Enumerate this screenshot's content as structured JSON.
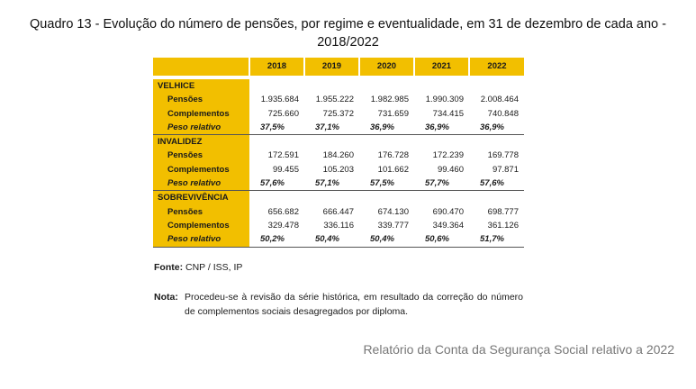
{
  "title": "Quadro 13 - Evolução do número de pensões, por regime e eventualidade, em 31 de dezembro de cada ano - 2018/2022",
  "table": {
    "years": [
      "2018",
      "2019",
      "2020",
      "2021",
      "2022"
    ],
    "sections": [
      {
        "label": "VELHICE",
        "rows": [
          {
            "label": "Pensões",
            "values": [
              "1.935.684",
              "1.955.222",
              "1.982.985",
              "1.990.309",
              "2.008.464"
            ]
          },
          {
            "label": "Complementos",
            "values": [
              "725.660",
              "725.372",
              "731.659",
              "734.415",
              "740.848"
            ]
          },
          {
            "label": "Peso relativo",
            "values": [
              "37,5%",
              "37,1%",
              "36,9%",
              "36,9%",
              "36,9%"
            ]
          }
        ]
      },
      {
        "label": "INVALIDEZ",
        "rows": [
          {
            "label": "Pensões",
            "values": [
              "172.591",
              "184.260",
              "176.728",
              "172.239",
              "169.778"
            ]
          },
          {
            "label": "Complementos",
            "values": [
              "99.455",
              "105.203",
              "101.662",
              "99.460",
              "97.871"
            ]
          },
          {
            "label": "Peso relativo",
            "values": [
              "57,6%",
              "57,1%",
              "57,5%",
              "57,7%",
              "57,6%"
            ]
          }
        ]
      },
      {
        "label": "SOBREVIVÊNCIA",
        "rows": [
          {
            "label": "Pensões",
            "values": [
              "656.682",
              "666.447",
              "674.130",
              "690.470",
              "698.777"
            ]
          },
          {
            "label": "Complementos",
            "values": [
              "329.478",
              "336.116",
              "339.777",
              "349.364",
              "361.126"
            ]
          },
          {
            "label": "Peso relativo",
            "values": [
              "50,2%",
              "50,4%",
              "50,4%",
              "50,6%",
              "51,7%"
            ]
          }
        ]
      }
    ]
  },
  "source": {
    "label": "Fonte:",
    "text": "CNP / ISS, IP"
  },
  "note": {
    "label": "Nota:",
    "text": "Procedeu-se à revisão da série histórica, em resultado da correção do número de complementos sociais desagregados por diploma."
  },
  "footer": "Relatório da Conta da Segurança Social relativo a 2022",
  "colors": {
    "header_fill": "#f2bf00",
    "footer_text": "#777777"
  }
}
